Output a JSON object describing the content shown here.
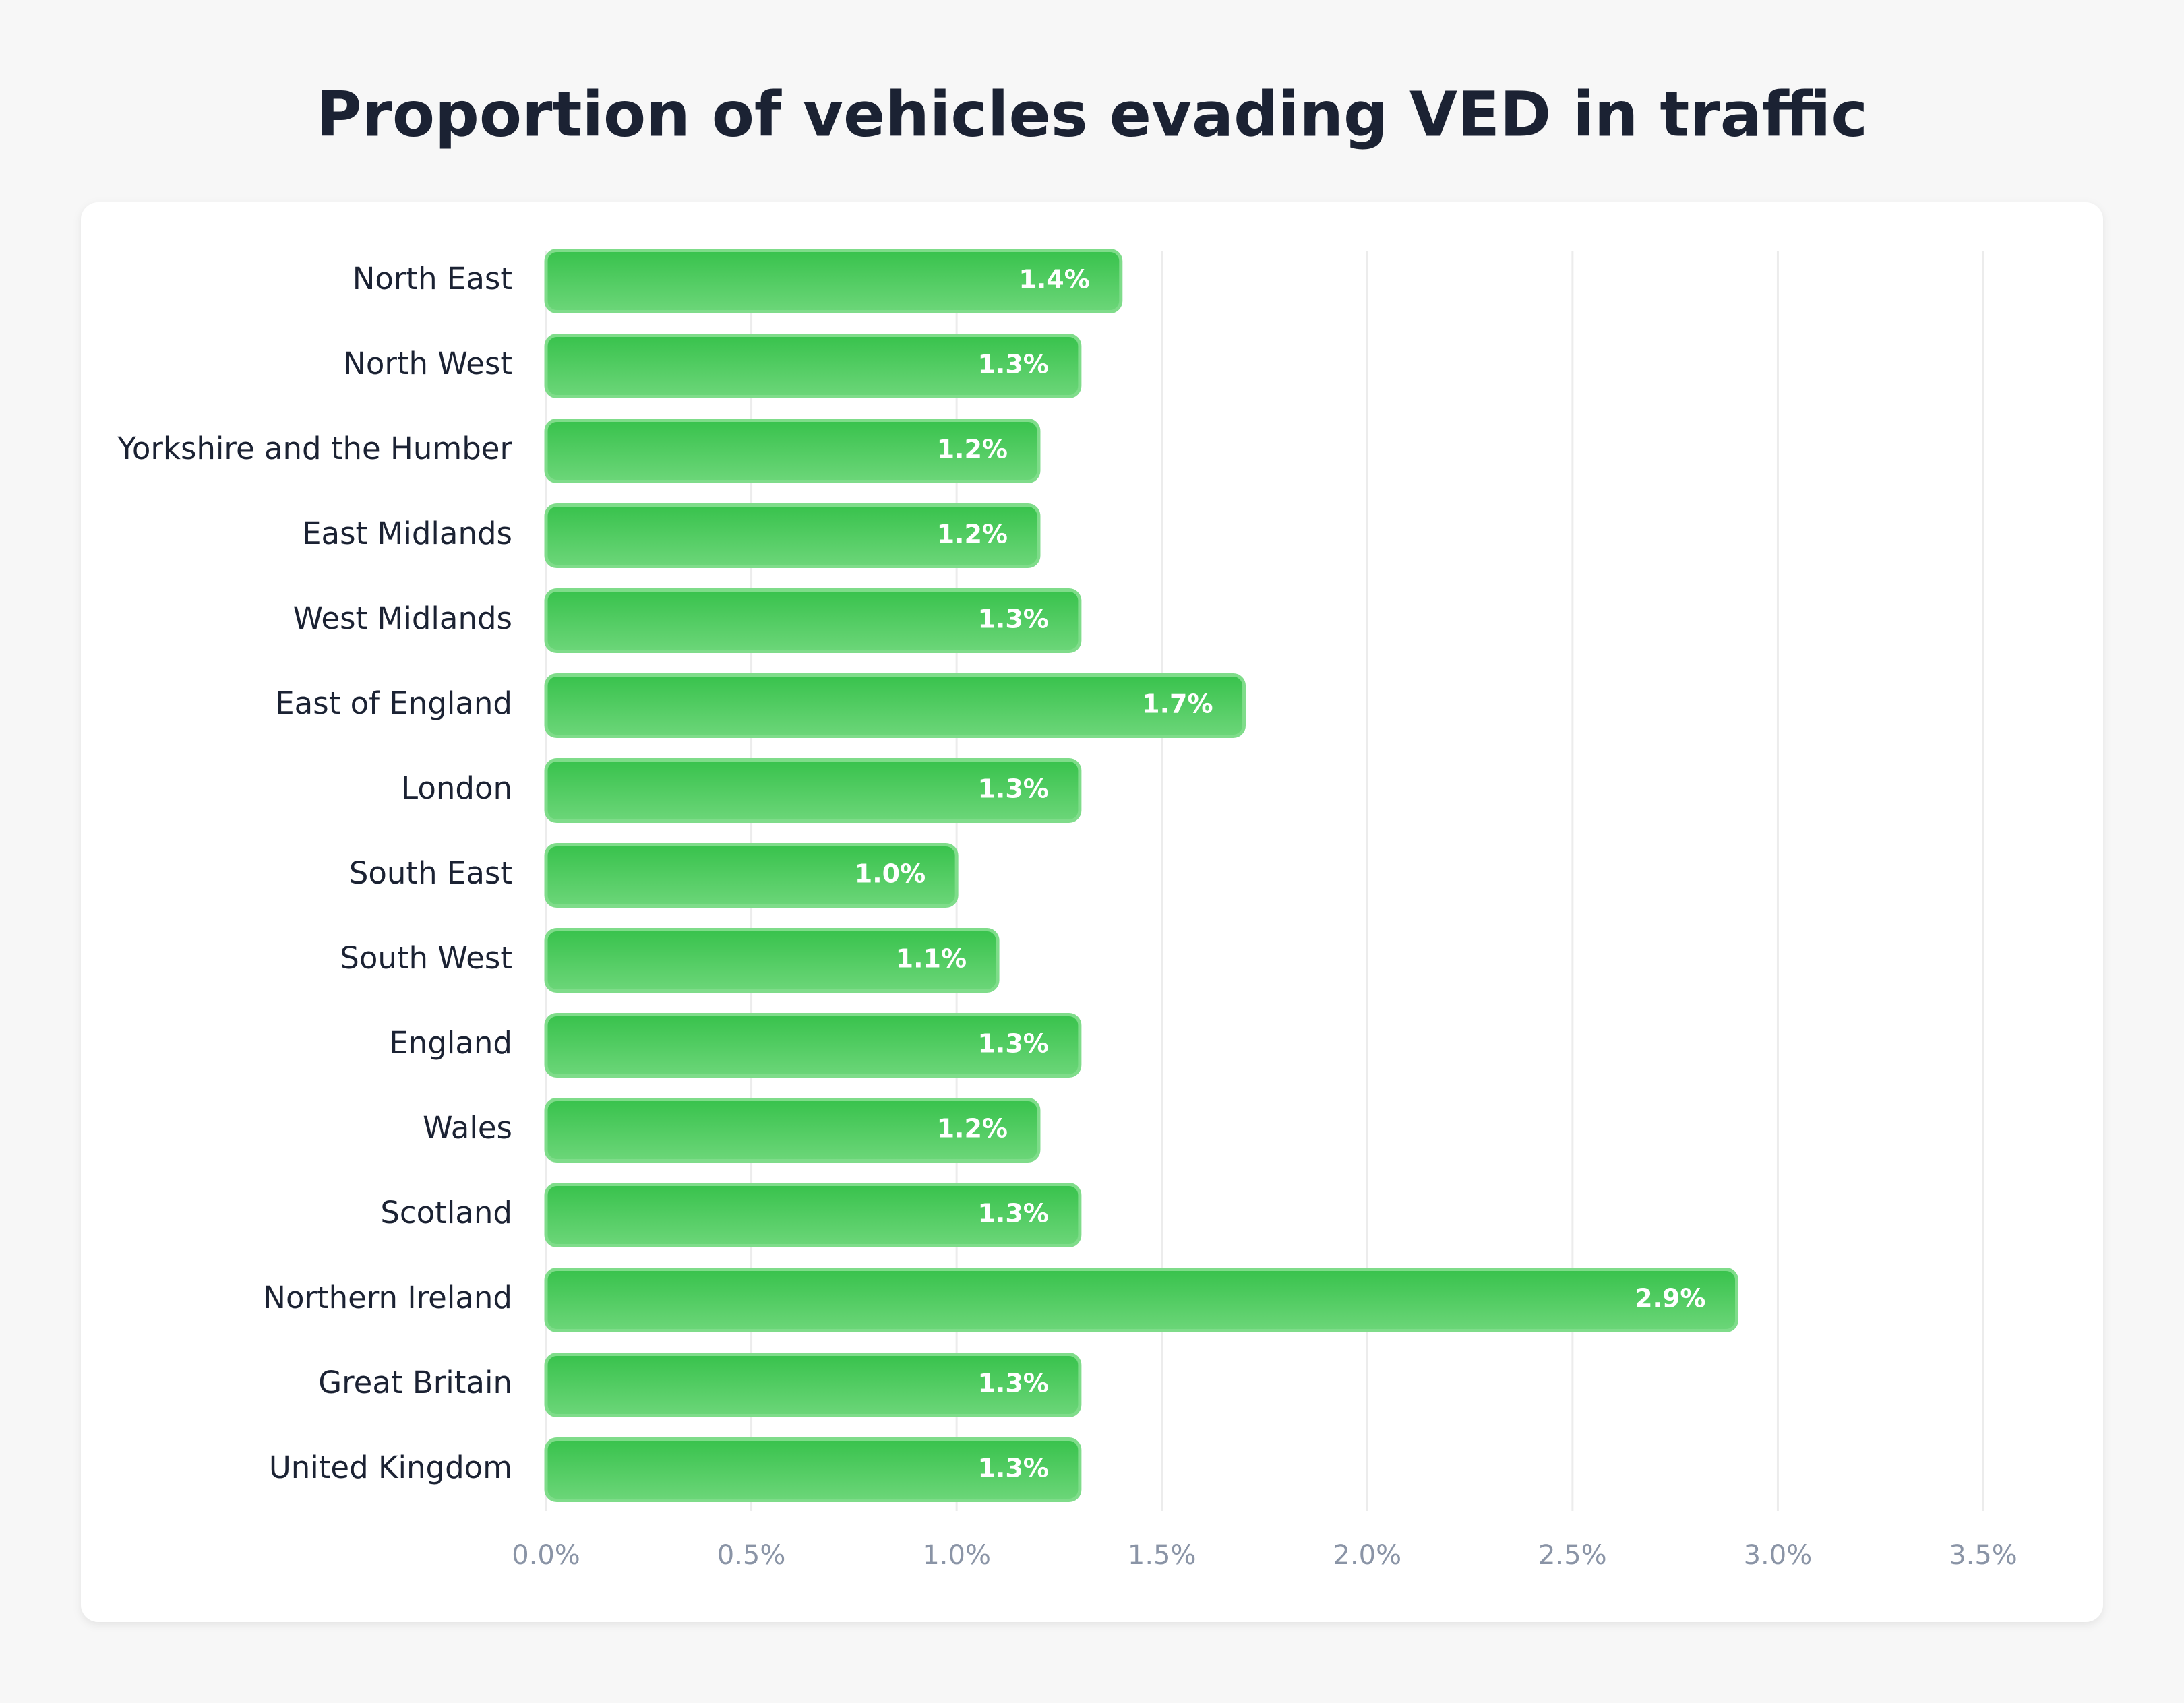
{
  "chart_data": {
    "type": "bar",
    "orientation": "horizontal",
    "title": "Proportion of vehicles evading VED in traffic",
    "categories": [
      "North East",
      "North West",
      "Yorkshire and the Humber",
      "East Midlands",
      "West Midlands",
      "East of England",
      "London",
      "South East",
      "South West",
      "England",
      "Wales",
      "Scotland",
      "Northern Ireland",
      "Great Britain",
      "United Kingdom"
    ],
    "values": [
      1.4,
      1.3,
      1.2,
      1.2,
      1.3,
      1.7,
      1.3,
      1.0,
      1.1,
      1.3,
      1.2,
      1.3,
      2.9,
      1.3,
      1.3
    ],
    "value_labels": [
      "1.4%",
      "1.3%",
      "1.2%",
      "1.2%",
      "1.3%",
      "1.7%",
      "1.3%",
      "1.0%",
      "1.1%",
      "1.3%",
      "1.2%",
      "1.3%",
      "2.9%",
      "1.3%",
      "1.3%"
    ],
    "color": "#3cc44f",
    "xlim": [
      0,
      3.5
    ],
    "xticks": [
      {
        "value": 0,
        "label": "0.0%"
      },
      {
        "value": 0.5,
        "label": "0.5%"
      },
      {
        "value": 1,
        "label": "1.0%"
      },
      {
        "value": 1.5,
        "label": "1.5%"
      },
      {
        "value": 2,
        "label": "2.0%"
      },
      {
        "value": 2.5,
        "label": "2.5%"
      },
      {
        "value": 3,
        "label": "3.0%"
      },
      {
        "value": 3.5,
        "label": "3.5%"
      }
    ],
    "grid": true
  }
}
